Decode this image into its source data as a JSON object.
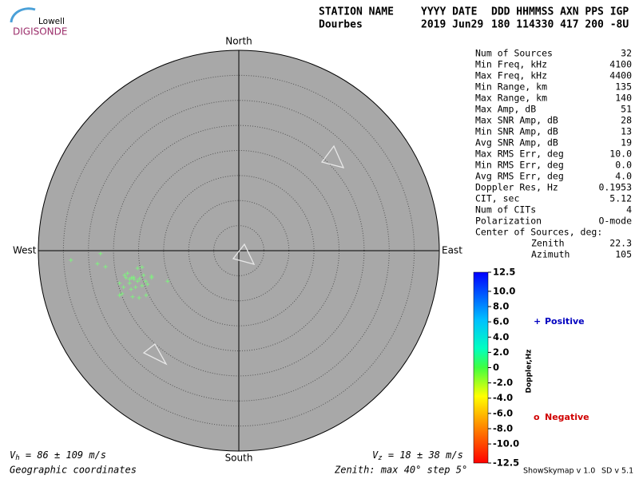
{
  "logo": {
    "small": "Lowell",
    "large": "DIGISONDE"
  },
  "header": {
    "columns": [
      {
        "label": "STATION NAME",
        "value": "Dourbes"
      },
      {
        "label": "YYYY DATE",
        "value": "2019 Jun29"
      },
      {
        "label": "DDD HHMMSS AXN PPS IGP",
        "value": "180 114330 417 200 -8U"
      }
    ]
  },
  "stats": {
    "rows": [
      [
        "Num of Sources",
        "32"
      ],
      [
        "Min Freq, kHz",
        "4100"
      ],
      [
        "Max Freq, kHz",
        "4400"
      ],
      [
        "Min Range, km",
        "135"
      ],
      [
        "Max Range, km",
        "140"
      ],
      [
        "Max Amp, dB",
        "51"
      ],
      [
        "Max SNR Amp, dB",
        "28"
      ],
      [
        "Min SNR Amp, dB",
        "13"
      ],
      [
        "Avg SNR Amp, dB",
        "19"
      ],
      [
        "Max RMS Err, deg",
        "10.0"
      ],
      [
        "Min RMS Err, deg",
        "0.0"
      ],
      [
        "Avg RMS Err, deg",
        "4.0"
      ],
      [
        "Doppler Res, Hz",
        "0.1953"
      ],
      [
        "CIT, sec",
        "5.12"
      ],
      [
        "Num of CITs",
        "4"
      ],
      [
        "Polarization",
        "O-mode"
      ]
    ],
    "center": {
      "title": "Center of Sources, deg:",
      "rows": [
        [
          "Zenith",
          "22.3"
        ],
        [
          "Azimuth",
          "105"
        ]
      ]
    }
  },
  "skymap": {
    "type": "scatter",
    "directions": {
      "north": "North",
      "south": "South",
      "east": "East",
      "west": "West"
    },
    "zenith_max": 40,
    "zenith_step": 5,
    "color": "#80f080",
    "x": [
      -33.5,
      -27.6,
      -28.2,
      -26.6,
      -22.2,
      -22.8,
      -21.4,
      -20.2,
      -19.3,
      -21.8,
      -20.9,
      -19.8,
      -17.4,
      -17.4,
      -18.6,
      -23.0,
      -20.6,
      -19.3,
      -14.2,
      -23.8,
      -23.3,
      -21.2,
      -19.9,
      -18.5,
      -21.8,
      -22.5,
      -21.0,
      -23.8,
      -20.2,
      -19.0,
      -21.5,
      -18.2
    ],
    "y": [
      -1.9,
      -0.6,
      -2.6,
      -3.2,
      -4.5,
      -4.9,
      -5.4,
      -3.5,
      -3.3,
      -5.7,
      -5.7,
      -5.6,
      -5.1,
      -5.4,
      -6.1,
      -7.3,
      -7.3,
      -7.0,
      -6.1,
      -8.9,
      -8.6,
      -9.2,
      -9.4,
      -8.9,
      -6.5,
      -5.4,
      -5.3,
      -6.5,
      -6.1,
      -4.9,
      -7.7,
      -6.7
    ]
  },
  "doppler_scale": {
    "title": "Doppler,Hz",
    "lim": [
      -12.5,
      12.5
    ],
    "ticks": [
      12.5,
      {
        "value": 10,
        "label": "10.0"
      },
      {
        "value": 8,
        "label": "8.0"
      },
      {
        "value": 6,
        "label": "6.0"
      },
      {
        "value": 4,
        "label": "4.0"
      },
      {
        "value": 2,
        "label": "2.0"
      },
      0,
      {
        "value": -2,
        "label": "-2.0"
      },
      {
        "value": -4,
        "label": "-4.0"
      },
      {
        "value": -6,
        "label": "-6.0"
      },
      {
        "value": -8,
        "label": "-8.0"
      },
      {
        "value": -10,
        "label": "-10.0"
      },
      -12.5
    ],
    "positive": {
      "symbol": "+",
      "label": "Positive",
      "color": "#0000c0"
    },
    "negative": {
      "symbol": "o",
      "label": "Negative",
      "color": "#d00000"
    }
  },
  "footer": {
    "vh": {
      "symbol": "V",
      "subscript": "h",
      "text": " = 86 ± 109 m/s"
    },
    "vz": {
      "symbol": "V",
      "subscript": "z",
      "text": " = 18 ± 38 m/s"
    },
    "coordinates": "Geographic coordinates",
    "zenith_note": "Zenith: max 40°  step 5°",
    "software": "ShowSkymap v 1.0",
    "version": "SD v 5.1"
  }
}
